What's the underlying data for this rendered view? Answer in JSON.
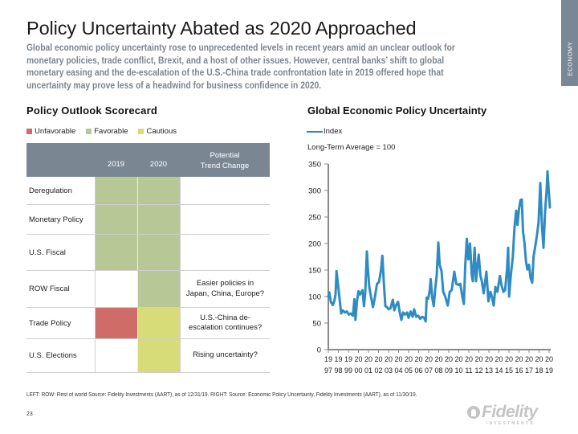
{
  "side_tab": {
    "label": "ECONOMY"
  },
  "header": {
    "title": "Policy Uncertainty Abated as 2020 Approached",
    "body_lines": [
      "Global economic policy uncertainty rose to unprecedented levels in recent years amid an unclear outlook for",
      "monetary policies, trade conflict, Brexit, and a host of other issues. However, central banks’ shift to global",
      "monetary easing and the de-escalation of the U.S.-China trade confrontation late in 2019 offered hope that",
      "uncertainty may prove less of a headwind for business confidence in 2020."
    ]
  },
  "scorecard": {
    "title": "Policy Outlook Scorecard",
    "legend": [
      {
        "key": "unfavorable",
        "label": "Unfavorable",
        "color": "#cf6c68"
      },
      {
        "key": "favorable",
        "label": "Favorable",
        "color": "#b7c896"
      },
      {
        "key": "cautious",
        "label": "Cautious",
        "color": "#d8dc78"
      }
    ],
    "columns": {
      "y2019": "2019",
      "y2020": "2020",
      "trend": [
        "Potential",
        "Trend Change"
      ]
    },
    "rows": [
      {
        "label": "Deregulation",
        "y2019": "favorable",
        "y2020": "favorable",
        "trend": []
      },
      {
        "label": "Monetary Policy",
        "y2019": "favorable",
        "y2020": "favorable",
        "trend": []
      },
      {
        "label": "U.S. Fiscal",
        "y2019": "favorable",
        "y2020": "favorable",
        "trend": []
      },
      {
        "label": "ROW Fiscal",
        "y2019": "",
        "y2020": "favorable",
        "trend": [
          "Easier policies in",
          "Japan, China, Europe?"
        ]
      },
      {
        "label": "Trade Policy",
        "y2019": "unfavorable",
        "y2020": "cautious",
        "trend": [
          "U.S.-China de-",
          "escalation continues?"
        ]
      },
      {
        "label": "U.S. Elections",
        "y2019": "",
        "y2020": "cautious",
        "trend": [
          "Rising uncertainty?"
        ]
      }
    ]
  },
  "chart_data": {
    "type": "line",
    "title": "Global Economic Policy Uncertainty",
    "subtitle": "Long-Term Average = 100",
    "legend": [
      {
        "label": "Index",
        "color": "#3b88ae"
      }
    ],
    "legend_position": "top-left",
    "xlabel": "",
    "ylabel": "",
    "xlim": [
      1997,
      2019
    ],
    "ylim": [
      0,
      350
    ],
    "yticks": [
      0,
      50,
      100,
      150,
      200,
      250,
      300,
      350
    ],
    "xticks": [
      "1997",
      "1998",
      "1999",
      "2000",
      "2001",
      "2002",
      "2003",
      "2004",
      "2005",
      "2006",
      "2007",
      "2008",
      "2009",
      "2010",
      "2011",
      "2012",
      "2013",
      "2014",
      "2015",
      "2016",
      "2017",
      "2018",
      "2019"
    ],
    "grid": false,
    "series": [
      {
        "name": "Index",
        "color": "#2f8cc2",
        "points": [
          [
            1997.0,
            100
          ],
          [
            1997.1,
            108
          ],
          [
            1997.25,
            90
          ],
          [
            1997.45,
            84
          ],
          [
            1997.6,
            92
          ],
          [
            1997.72,
            104
          ],
          [
            1997.82,
            148
          ],
          [
            1997.95,
            125
          ],
          [
            1998.1,
            100
          ],
          [
            1998.28,
            68
          ],
          [
            1998.45,
            74
          ],
          [
            1998.65,
            70
          ],
          [
            1998.85,
            72
          ],
          [
            1999.05,
            66
          ],
          [
            1999.25,
            68
          ],
          [
            1999.45,
            64
          ],
          [
            1999.6,
            95
          ],
          [
            1999.7,
            56
          ],
          [
            1999.85,
            90
          ],
          [
            2000.0,
            110
          ],
          [
            2000.15,
            104
          ],
          [
            2000.4,
            112
          ],
          [
            2000.55,
            82
          ],
          [
            2000.68,
            108
          ],
          [
            2000.84,
            185
          ],
          [
            2000.95,
            150
          ],
          [
            2001.08,
            118
          ],
          [
            2001.25,
            100
          ],
          [
            2001.45,
            80
          ],
          [
            2001.62,
            96
          ],
          [
            2001.85,
            124
          ],
          [
            2002.05,
            127
          ],
          [
            2002.25,
            150
          ],
          [
            2002.38,
            177
          ],
          [
            2002.52,
            130
          ],
          [
            2002.68,
            82
          ],
          [
            2002.85,
            80
          ],
          [
            2003.0,
            76
          ],
          [
            2003.2,
            78
          ],
          [
            2003.42,
            94
          ],
          [
            2003.58,
            74
          ],
          [
            2003.75,
            84
          ],
          [
            2003.95,
            90
          ],
          [
            2004.1,
            72
          ],
          [
            2004.28,
            56
          ],
          [
            2004.45,
            70
          ],
          [
            2004.65,
            66
          ],
          [
            2004.85,
            70
          ],
          [
            2005.0,
            60
          ],
          [
            2005.2,
            72
          ],
          [
            2005.4,
            62
          ],
          [
            2005.55,
            76
          ],
          [
            2005.75,
            62
          ],
          [
            2005.95,
            64
          ],
          [
            2006.15,
            58
          ],
          [
            2006.35,
            62
          ],
          [
            2006.55,
            60
          ],
          [
            2006.7,
            53
          ],
          [
            2006.8,
            98
          ],
          [
            2006.95,
            96
          ],
          [
            2007.1,
            110
          ],
          [
            2007.2,
            133
          ],
          [
            2007.35,
            98
          ],
          [
            2007.5,
            82
          ],
          [
            2007.65,
            114
          ],
          [
            2007.8,
            140
          ],
          [
            2007.96,
            202
          ],
          [
            2008.1,
            160
          ],
          [
            2008.28,
            148
          ],
          [
            2008.45,
            109
          ],
          [
            2008.65,
            100
          ],
          [
            2008.9,
            83
          ],
          [
            2009.1,
            109
          ],
          [
            2009.3,
            112
          ],
          [
            2009.55,
            147
          ],
          [
            2009.75,
            124
          ],
          [
            2009.95,
            122
          ],
          [
            2010.15,
            124
          ],
          [
            2010.35,
            100
          ],
          [
            2010.5,
            86
          ],
          [
            2010.65,
            160
          ],
          [
            2010.8,
            209
          ],
          [
            2010.95,
            170
          ],
          [
            2011.12,
            200
          ],
          [
            2011.3,
            140
          ],
          [
            2011.4,
            129
          ],
          [
            2011.58,
            192
          ],
          [
            2011.72,
            129
          ],
          [
            2011.82,
            150
          ],
          [
            2011.98,
            179
          ],
          [
            2012.15,
            140
          ],
          [
            2012.3,
            129
          ],
          [
            2012.48,
            106
          ],
          [
            2012.75,
            147
          ],
          [
            2012.95,
            91
          ],
          [
            2013.15,
            109
          ],
          [
            2013.3,
            100
          ],
          [
            2013.48,
            83
          ],
          [
            2013.65,
            118
          ],
          [
            2013.85,
            109
          ],
          [
            2014.1,
            139
          ],
          [
            2014.25,
            122
          ],
          [
            2014.45,
            109
          ],
          [
            2014.62,
            112
          ],
          [
            2014.8,
            150
          ],
          [
            2014.92,
            192
          ],
          [
            2015.02,
            100
          ],
          [
            2015.18,
            140
          ],
          [
            2015.38,
            175
          ],
          [
            2015.55,
            230
          ],
          [
            2015.72,
            262
          ],
          [
            2015.85,
            235
          ],
          [
            2016.0,
            265
          ],
          [
            2016.15,
            282
          ],
          [
            2016.28,
            283
          ],
          [
            2016.4,
            223
          ],
          [
            2016.55,
            200
          ],
          [
            2016.7,
            165
          ],
          [
            2016.84,
            151
          ],
          [
            2017.0,
            160
          ],
          [
            2017.15,
            135
          ],
          [
            2017.32,
            126
          ],
          [
            2017.45,
            175
          ],
          [
            2017.64,
            197
          ],
          [
            2017.8,
            217
          ],
          [
            2017.95,
            240
          ],
          [
            2018.12,
            314
          ],
          [
            2018.3,
            230
          ],
          [
            2018.44,
            192
          ],
          [
            2018.6,
            260
          ],
          [
            2018.75,
            300
          ],
          [
            2018.84,
            336
          ],
          [
            2018.95,
            303
          ],
          [
            2019.08,
            268
          ]
        ]
      }
    ]
  },
  "footer": {
    "note": "LEFT: ROW: Rest of world Source: Fidelity Investments (AART), as of 12/31/19.  RIGHT: Source: Economic Policy Uncertainty, Fidelity Investments (AART), as of 11/30/19.",
    "page_number": "23",
    "logo": {
      "name": "Fidelity",
      "tagline": "INVESTMENTS"
    }
  }
}
